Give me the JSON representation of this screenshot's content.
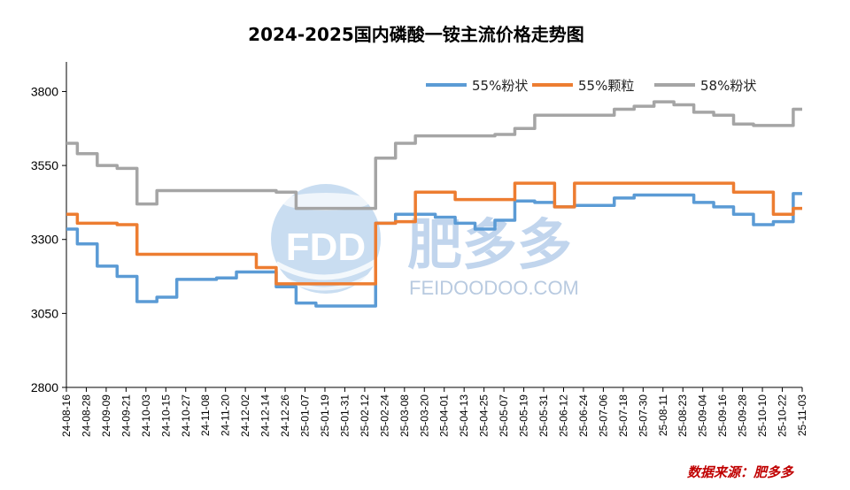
{
  "chart_data": {
    "type": "line",
    "title": "2024-2025国内磷酸一铵主流价格走势图",
    "xlabel": "",
    "ylabel": "",
    "ylim": [
      2800,
      3900
    ],
    "yticks": [
      2800,
      3050,
      3300,
      3550,
      3800
    ],
    "grid": false,
    "legend_position": "top-right",
    "x": [
      "24-08-16",
      "24-08-28",
      "24-09-09",
      "24-09-21",
      "24-10-03",
      "24-10-15",
      "24-10-27",
      "24-11-08",
      "24-11-20",
      "24-12-02",
      "24-12-14",
      "24-12-26",
      "25-01-07",
      "25-01-19",
      "25-01-31",
      "25-02-12",
      "25-02-24",
      "25-03-08",
      "25-03-20",
      "25-04-01",
      "25-04-13",
      "25-04-25",
      "25-05-07",
      "25-05-19",
      "25-05-31",
      "25-06-12",
      "25-06-24",
      "25-07-06",
      "25-07-18",
      "25-07-30",
      "25-08-11",
      "25-08-23",
      "25-09-04",
      "25-09-16",
      "25-09-28",
      "25-10-10",
      "25-10-22",
      "25-11-03"
    ],
    "series": [
      {
        "name": "55%粉状",
        "color": "#5b9bd5",
        "values": [
          3335,
          3285,
          3210,
          3175,
          3090,
          3105,
          3165,
          3165,
          3170,
          3190,
          3190,
          3140,
          3085,
          3075,
          3075,
          3075,
          3355,
          3385,
          3385,
          3375,
          3355,
          3335,
          3365,
          3430,
          3425,
          3410,
          3415,
          3415,
          3440,
          3450,
          3450,
          3450,
          3425,
          3410,
          3385,
          3350,
          3360,
          3455
        ]
      },
      {
        "name": "55%颗粒",
        "color": "#ed7d31",
        "values": [
          3385,
          3355,
          3355,
          3350,
          3250,
          3250,
          3250,
          3250,
          3250,
          3250,
          3205,
          3150,
          3150,
          3150,
          3150,
          3150,
          3355,
          3360,
          3460,
          3460,
          3435,
          3435,
          3435,
          3490,
          3490,
          3410,
          3490,
          3490,
          3490,
          3490,
          3490,
          3490,
          3490,
          3490,
          3460,
          3460,
          3385,
          3405
        ]
      },
      {
        "name": "58%粉状",
        "color": "#a5a5a5",
        "values": [
          3625,
          3590,
          3550,
          3540,
          3420,
          3465,
          3465,
          3465,
          3465,
          3465,
          3465,
          3460,
          3405,
          3405,
          3405,
          3405,
          3575,
          3625,
          3650,
          3650,
          3650,
          3650,
          3655,
          3675,
          3720,
          3720,
          3720,
          3720,
          3740,
          3750,
          3765,
          3755,
          3730,
          3720,
          3690,
          3685,
          3685,
          3740
        ]
      }
    ]
  },
  "watermark": {
    "logo_text": "FDD",
    "brand_cn": "肥多多",
    "brand_url": "FEIDOODOO.COM"
  },
  "source_note": "数据来源：肥多多"
}
